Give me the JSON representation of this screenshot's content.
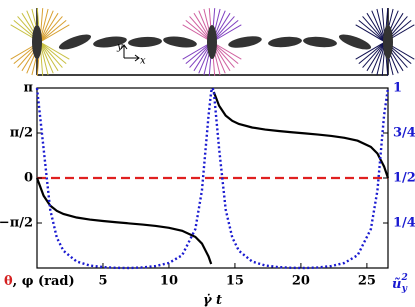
{
  "chart_data": {
    "type": "line",
    "inset": {
      "axes": [
        "y",
        "x"
      ]
    },
    "xlabel": {
      "base": "γ̇",
      "rest": " t"
    },
    "ylabel": [
      {
        "text": "θ",
        "color": "#d42020"
      },
      {
        "text": ", φ (rad)",
        "color": "#000000"
      }
    ],
    "y2label": {
      "base": "ũ",
      "sub": "y",
      "sup": "2",
      "color": "#1a1ad0"
    },
    "xlim": [
      0,
      26.6
    ],
    "xticks": [
      5,
      10,
      15,
      20,
      25
    ],
    "ylim": [
      -3.14159,
      3.14159
    ],
    "yticks": [
      {
        "value": 3.14159,
        "label": "π"
      },
      {
        "value": 1.5708,
        "label": "π/2"
      },
      0,
      {
        "value": -1.5708,
        "label": "−π/2"
      }
    ],
    "y2lim": [
      0,
      1
    ],
    "y2ticks": [
      1,
      {
        "value": 0.75,
        "label": "3/4"
      },
      {
        "value": 0.5,
        "label": "1/2"
      },
      {
        "value": 0.25,
        "label": "1/4"
      }
    ],
    "hlines": [
      {
        "y": 0,
        "color": "#e02020",
        "style": "dashed"
      }
    ],
    "x": [
      0,
      0.5,
      1,
      1.5,
      2,
      3,
      4,
      5,
      6,
      7,
      8,
      9,
      10,
      11,
      12,
      12.5,
      13,
      13.2,
      13.3,
      13.4,
      13.8,
      14.3,
      14.8,
      15.3,
      16.3,
      17.3,
      18.3,
      19.3,
      20.3,
      21.3,
      22.3,
      23.3,
      24.3,
      25.3,
      25.8,
      26.3,
      26.6
    ],
    "series": [
      {
        "color": "#000000",
        "style": "solid",
        "values": [
          0,
          -0.619,
          -0.965,
          -1.147,
          -1.256,
          -1.379,
          -1.451,
          -1.502,
          -1.545,
          -1.585,
          -1.625,
          -1.674,
          -1.739,
          -1.841,
          -2.055,
          -2.288,
          -2.739,
          -3.001,
          null,
          3.001,
          2.523,
          2.177,
          1.995,
          1.886,
          1.763,
          1.691,
          1.64,
          1.597,
          1.557,
          1.517,
          1.468,
          1.403,
          1.301,
          1.087,
          0.854,
          0.403,
          0
        ]
      },
      {
        "color": "#1a1ad0",
        "style": "dotted",
        "axis": "y2",
        "values": [
          1,
          0.663,
          0.324,
          0.169,
          0.096,
          0.036,
          0.014,
          0.005,
          0.001,
          0,
          0.003,
          0.011,
          0.028,
          0.071,
          0.216,
          0.431,
          0.846,
          0.98,
          1,
          0.98,
          0.663,
          0.324,
          0.169,
          0.096,
          0.036,
          0.014,
          0.005,
          0.001,
          0,
          0.003,
          0.011,
          0.028,
          0.071,
          0.216,
          0.431,
          0.846,
          1
        ]
      }
    ]
  }
}
